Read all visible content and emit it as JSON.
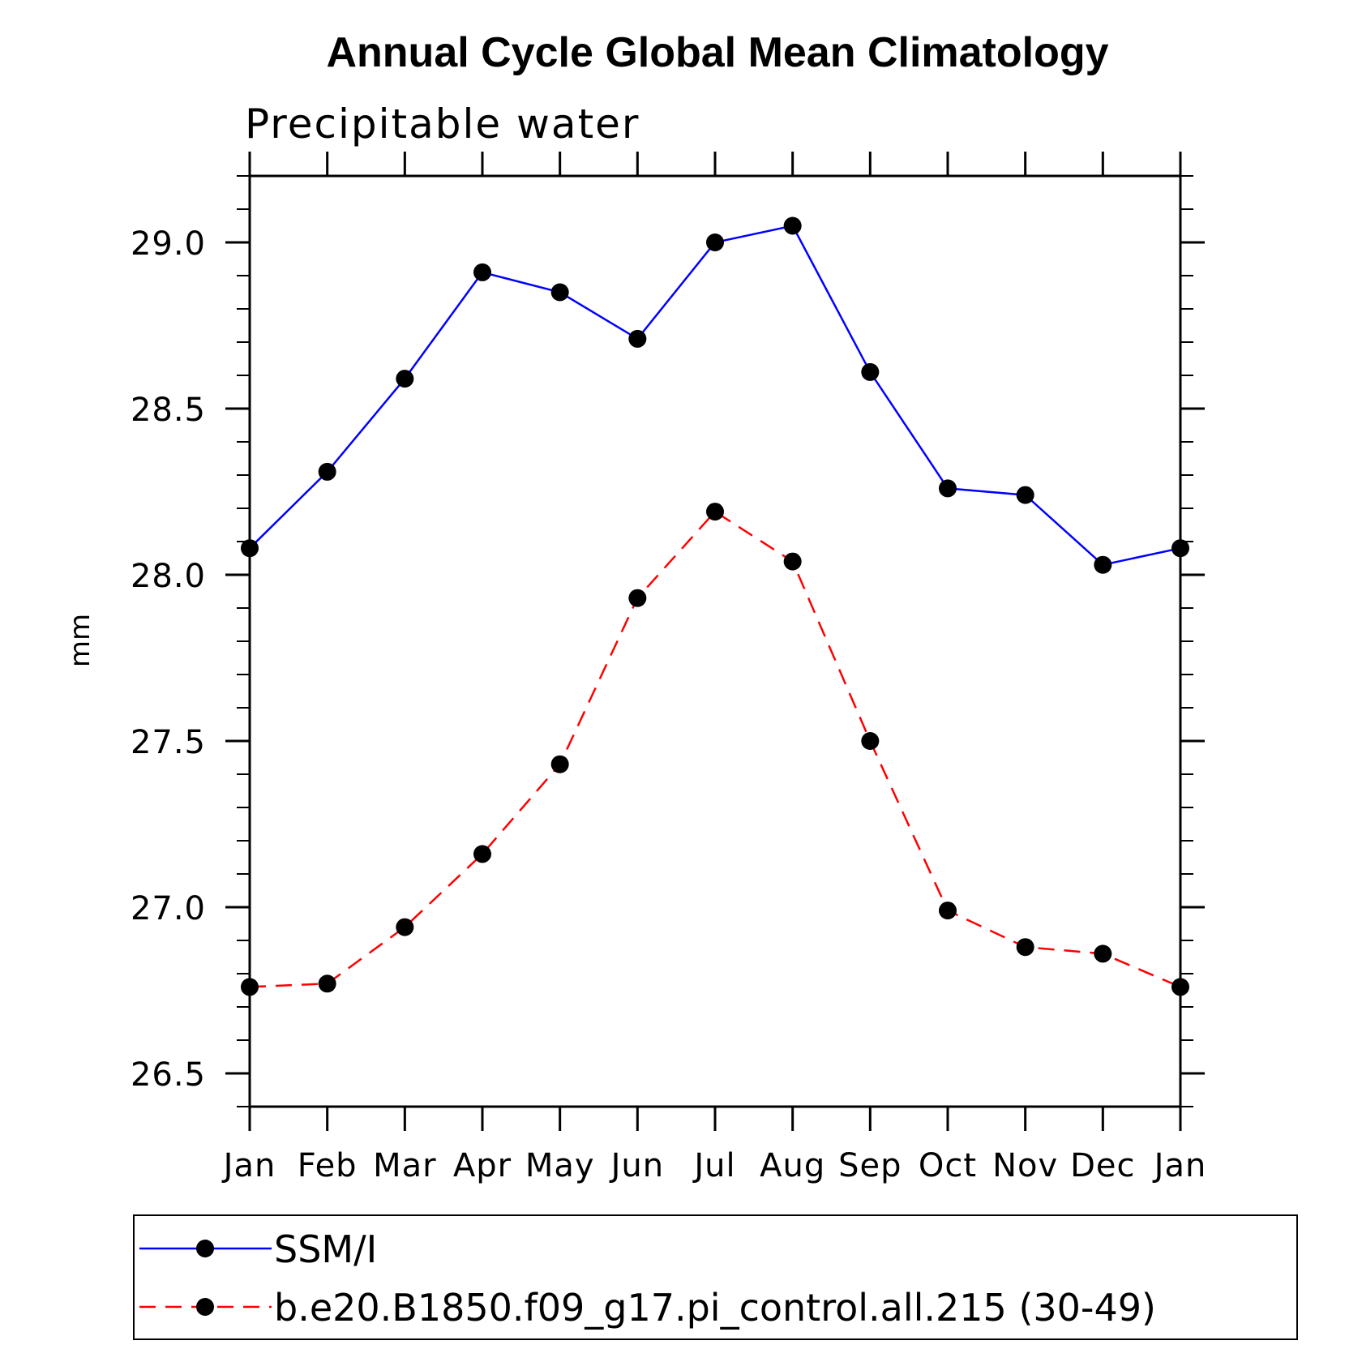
{
  "chart_data": {
    "type": "line",
    "title": "Annual Cycle Global Mean Climatology",
    "subtitle": "Precipitable water",
    "xlabel": "",
    "ylabel": "mm",
    "categories": [
      "Jan",
      "Feb",
      "Mar",
      "Apr",
      "May",
      "Jun",
      "Jul",
      "Aug",
      "Sep",
      "Oct",
      "Nov",
      "Dec",
      "Jan"
    ],
    "ylim": [
      26.4,
      29.2
    ],
    "yticks": [
      "26.5",
      "27.0",
      "27.5",
      "28.0",
      "28.5",
      "29.0"
    ],
    "grid": false,
    "legend_position": "bottom",
    "series": [
      {
        "name": "SSM/I",
        "color": "#0000ff",
        "dash": "solid",
        "marker": "filled-circle",
        "values": [
          28.08,
          28.31,
          28.59,
          28.91,
          28.85,
          28.71,
          29.0,
          29.05,
          28.61,
          28.26,
          28.24,
          28.03,
          28.08
        ]
      },
      {
        "name": "b.e20.B1850.f09_g17.pi_control.all.215 (30-49)",
        "color": "#ff0000",
        "dash": "dashed",
        "marker": "filled-circle",
        "values": [
          26.76,
          26.77,
          26.94,
          27.16,
          27.43,
          27.93,
          28.19,
          28.04,
          27.5,
          26.99,
          26.88,
          26.86,
          26.76
        ]
      }
    ]
  }
}
